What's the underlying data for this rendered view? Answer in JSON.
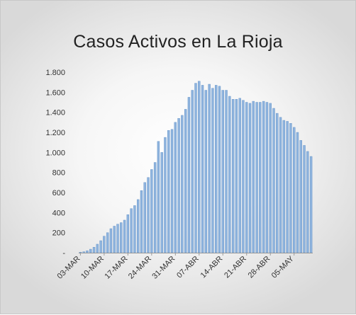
{
  "chart_data": {
    "type": "bar",
    "title": "Casos Activos en La Rioja",
    "xlabel": "",
    "ylabel": "",
    "ylim": [
      0,
      1800
    ],
    "y_ticks": [
      {
        "value": 0,
        "label": "-"
      },
      {
        "value": 200,
        "label": "200"
      },
      {
        "value": 400,
        "label": "400"
      },
      {
        "value": 600,
        "label": "600"
      },
      {
        "value": 800,
        "label": "800"
      },
      {
        "value": 1000,
        "label": "1.000"
      },
      {
        "value": 1200,
        "label": "1.200"
      },
      {
        "value": 1400,
        "label": "1.400"
      },
      {
        "value": 1600,
        "label": "1.600"
      },
      {
        "value": 1800,
        "label": "1.800"
      }
    ],
    "x_ticks": [
      {
        "index": 0,
        "label": "03-MAR"
      },
      {
        "index": 7,
        "label": "10-MAR"
      },
      {
        "index": 14,
        "label": "17-MAR"
      },
      {
        "index": 21,
        "label": "24-MAR"
      },
      {
        "index": 28,
        "label": "31-MAR"
      },
      {
        "index": 35,
        "label": "07-ABR"
      },
      {
        "index": 42,
        "label": "14-ABR"
      },
      {
        "index": 49,
        "label": "21-ABR"
      },
      {
        "index": 56,
        "label": "28-ABR"
      },
      {
        "index": 63,
        "label": "05-MAY"
      }
    ],
    "grid": false,
    "legend": "none",
    "bar_color": "#8fb4de",
    "bar_edge_color": "#5b8cc4",
    "values": [
      5,
      10,
      20,
      35,
      55,
      85,
      120,
      165,
      200,
      240,
      265,
      285,
      300,
      325,
      380,
      440,
      470,
      530,
      620,
      700,
      750,
      830,
      900,
      1110,
      1000,
      1150,
      1220,
      1230,
      1300,
      1340,
      1370,
      1430,
      1550,
      1620,
      1690,
      1710,
      1670,
      1620,
      1680,
      1640,
      1670,
      1660,
      1620,
      1620,
      1560,
      1530,
      1530,
      1540,
      1520,
      1500,
      1490,
      1510,
      1500,
      1500,
      1510,
      1500,
      1490,
      1440,
      1390,
      1350,
      1320,
      1310,
      1290,
      1250,
      1200,
      1120,
      1070,
      1010,
      960
    ]
  }
}
